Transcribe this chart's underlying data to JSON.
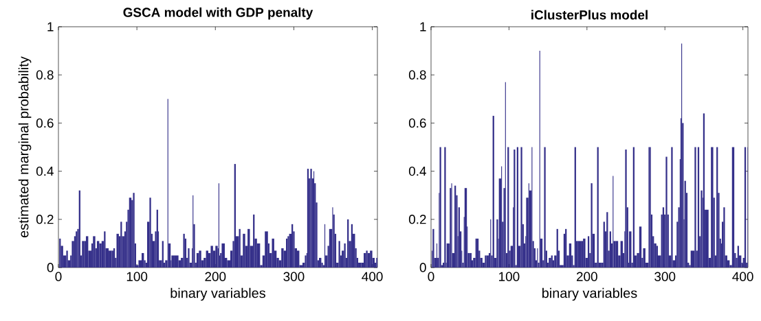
{
  "chart_data": [
    {
      "type": "bar",
      "title": "GSCA model with GDP penalty",
      "xlabel": "binary variables",
      "ylabel": "estimated marginal probability",
      "color": "#35308a",
      "xlim": [
        0,
        406.5
      ],
      "ylim": [
        0,
        1
      ],
      "xticks": [
        0,
        100,
        200,
        300,
        400
      ],
      "yticks": [
        0,
        0.2,
        0.4,
        0.6,
        0.8,
        1
      ],
      "x": [
        1,
        3,
        6,
        10,
        12,
        15,
        17,
        20,
        22,
        24,
        26,
        28,
        30,
        33,
        35,
        38,
        42,
        44,
        47,
        49,
        52,
        55,
        58,
        60,
        64,
        68,
        70,
        72,
        74,
        77,
        79,
        81,
        84,
        86,
        88,
        90,
        93,
        95,
        97,
        99,
        102,
        106,
        109,
        111,
        113,
        116,
        118,
        120,
        123,
        125,
        127,
        128,
        132,
        134,
        136,
        139,
        140,
        143,
        144,
        148,
        153,
        156,
        159,
        161,
        163,
        165,
        167,
        170,
        171,
        172,
        174,
        176,
        179,
        182,
        185,
        188,
        191,
        194,
        197,
        200,
        203,
        204,
        205,
        206,
        208,
        212,
        215,
        219,
        222,
        224,
        226,
        230,
        232,
        235,
        238,
        241,
        244,
        248,
        250,
        253,
        257,
        260,
        263,
        267,
        269,
        272,
        275,
        278,
        281,
        284,
        287,
        290,
        292,
        294,
        297,
        299,
        301,
        304,
        307,
        311,
        314,
        316,
        317,
        319,
        321,
        323,
        325,
        326,
        328,
        330,
        332,
        335,
        337,
        339,
        340,
        343,
        345,
        349,
        350,
        352,
        354,
        357,
        359,
        361,
        364,
        366,
        368,
        370,
        373,
        375,
        378,
        380,
        382,
        386,
        389,
        392,
        394,
        397,
        400,
        403,
        405
      ],
      "values": [
        0.12,
        0.09,
        0.05,
        0.07,
        0.03,
        0.05,
        0.11,
        0.13,
        0.15,
        0.16,
        0.32,
        0.05,
        0.11,
        0.11,
        0.13,
        0.07,
        0.1,
        0.13,
        0.08,
        0.11,
        0.1,
        0.11,
        0.15,
        0.08,
        0.07,
        0.07,
        0.08,
        0.04,
        0.14,
        0.13,
        0.19,
        0.13,
        0.15,
        0.19,
        0.24,
        0.29,
        0.28,
        0.31,
        0.1,
        0.01,
        0.03,
        0.06,
        0.03,
        0.02,
        0.19,
        0.29,
        0.14,
        0.11,
        0.15,
        0.24,
        0.15,
        0.03,
        0.11,
        0.02,
        0.03,
        0.7,
        0.1,
        0.03,
        0.05,
        0.05,
        0.03,
        0.04,
        0.14,
        0.12,
        0.04,
        0.08,
        0.02,
        0.08,
        0.3,
        0.18,
        0.02,
        0.06,
        0.07,
        0.03,
        0.04,
        0.07,
        0.06,
        0.09,
        0.07,
        0.09,
        0.08,
        0.35,
        0.05,
        0.06,
        0.1,
        0.04,
        0.03,
        0.07,
        0.11,
        0.43,
        0.13,
        0.16,
        0.05,
        0.14,
        0.09,
        0.16,
        0.09,
        0.22,
        0.12,
        0.1,
        0.01,
        0.05,
        0.15,
        0.1,
        0.06,
        0.12,
        0.07,
        0.04,
        0.03,
        0.08,
        0.07,
        0.12,
        0.13,
        0.14,
        0.18,
        0.15,
        0.08,
        0.07,
        0.01,
        0.02,
        0.05,
        0.06,
        0.41,
        0.37,
        0.41,
        0.37,
        0.4,
        0.35,
        0.27,
        0.03,
        0.04,
        0.02,
        0.01,
        0.18,
        0.05,
        0.09,
        0.16,
        0.25,
        0.22,
        0.14,
        0.02,
        0.11,
        0.05,
        0.07,
        0.1,
        0.04,
        0.2,
        0.11,
        0.18,
        0.14,
        0.08,
        0.04,
        0.02,
        0.02,
        0.06,
        0.07,
        0.06,
        0.07,
        0.04,
        0.02,
        0.04
      ]
    },
    {
      "type": "bar",
      "title": "iClusterPlus model",
      "xlabel": "binary variables",
      "color": "#35308a",
      "xlim": [
        0,
        406.5
      ],
      "ylim": [
        0,
        1
      ],
      "xticks": [
        0,
        100,
        200,
        300,
        400
      ],
      "yticks": [
        0,
        0.2,
        0.4,
        0.6,
        0.8,
        1
      ],
      "x": [
        1,
        2,
        4,
        7,
        8,
        10,
        11,
        13,
        15,
        17,
        19,
        20,
        23,
        24,
        26,
        27,
        30,
        32,
        34,
        35,
        37,
        39,
        40,
        42,
        43,
        46,
        47,
        50,
        52,
        54,
        57,
        59,
        61,
        63,
        66,
        69,
        71,
        74,
        76,
        77,
        79,
        81,
        84,
        86,
        87,
        90,
        91,
        93,
        95,
        96,
        98,
        100,
        102,
        105,
        106,
        108,
        110,
        112,
        115,
        117,
        119,
        121,
        122,
        125,
        126,
        129,
        130,
        132,
        134,
        136,
        137,
        139,
        140,
        143,
        145,
        147,
        149,
        151,
        154,
        156,
        158,
        161,
        163,
        165,
        170,
        172,
        174,
        177,
        180,
        182,
        184,
        186,
        188,
        193,
        195,
        198,
        201,
        203,
        205,
        207,
        210,
        213,
        215,
        218,
        221,
        223,
        225,
        227,
        229,
        231,
        233,
        234,
        237,
        240,
        243,
        246,
        248,
        249,
        251,
        253,
        254,
        257,
        259,
        261,
        264,
        267,
        270,
        272,
        275,
        279,
        281,
        282,
        284,
        286,
        289,
        291,
        295,
        297,
        299,
        301,
        303,
        305,
        308,
        310,
        313,
        315,
        317,
        319,
        320,
        321,
        322,
        324,
        325,
        327,
        329,
        331,
        333,
        338,
        340,
        342,
        344,
        346,
        348,
        349,
        351,
        356,
        359,
        362,
        364,
        366,
        368,
        370,
        372,
        373,
        375,
        377,
        380,
        383,
        386,
        389,
        391,
        393,
        395,
        398,
        400,
        402,
        404,
        406
      ],
      "values": [
        0.07,
        0.16,
        0.04,
        0.1,
        0.04,
        0.31,
        0.5,
        0.01,
        0.02,
        0.5,
        0.02,
        0.1,
        0.1,
        0.33,
        0.35,
        0.06,
        0.34,
        0.3,
        0.13,
        0.25,
        0.15,
        0.07,
        0.02,
        0.21,
        0.33,
        0.17,
        0.06,
        0.06,
        0.03,
        0.04,
        0.12,
        0.12,
        0.07,
        0.04,
        0.02,
        0.05,
        0.05,
        0.06,
        0.2,
        0.05,
        0.63,
        0.04,
        0.2,
        0.12,
        0.37,
        0.42,
        0.19,
        0.33,
        0.77,
        0.06,
        0.5,
        0.07,
        0.09,
        0.25,
        0.49,
        0.01,
        0.5,
        0.09,
        0.5,
        0.18,
        0.1,
        0.13,
        0.29,
        0.35,
        0.32,
        0.5,
        0.11,
        0.08,
        0.03,
        0.08,
        0.02,
        0.9,
        0.12,
        0.03,
        0.5,
        0.07,
        0.02,
        0.04,
        0.05,
        0.03,
        0.05,
        0.16,
        0.07,
        0.01,
        0.14,
        0.16,
        0.05,
        0.1,
        0.05,
        0.01,
        0.5,
        0.11,
        0.11,
        0.11,
        0.12,
        0.04,
        0.13,
        0.06,
        0.35,
        0.14,
        0.02,
        0.5,
        0.02,
        0.02,
        0.19,
        0.15,
        0.23,
        0.07,
        0.15,
        0.1,
        0.38,
        0.11,
        0.11,
        0.05,
        0.11,
        0.06,
        0.15,
        0.49,
        0.25,
        0.02,
        0.15,
        0.02,
        0.5,
        0.05,
        0.06,
        0.17,
        0.04,
        0.08,
        0.02,
        0.5,
        0.5,
        0.22,
        0.13,
        0.1,
        0.09,
        0.05,
        0.22,
        0.25,
        0.22,
        0.46,
        0.22,
        0.05,
        0.5,
        0.03,
        0.05,
        0.19,
        0.25,
        0.45,
        0.62,
        0.93,
        0.6,
        0.2,
        0.36,
        0.31,
        0.02,
        0.01,
        0.07,
        0.5,
        0.07,
        0.5,
        0.13,
        0.32,
        0.29,
        0.64,
        0.24,
        0.04,
        0.5,
        0.29,
        0.05,
        0.5,
        0.31,
        0.12,
        0.1,
        0.19,
        0.25,
        0.05,
        0.03,
        0.01,
        0.5,
        0.06,
        0.04,
        0.09,
        0.05,
        0.02,
        0.04,
        0.5,
        0.02,
        0.5
      ]
    }
  ]
}
